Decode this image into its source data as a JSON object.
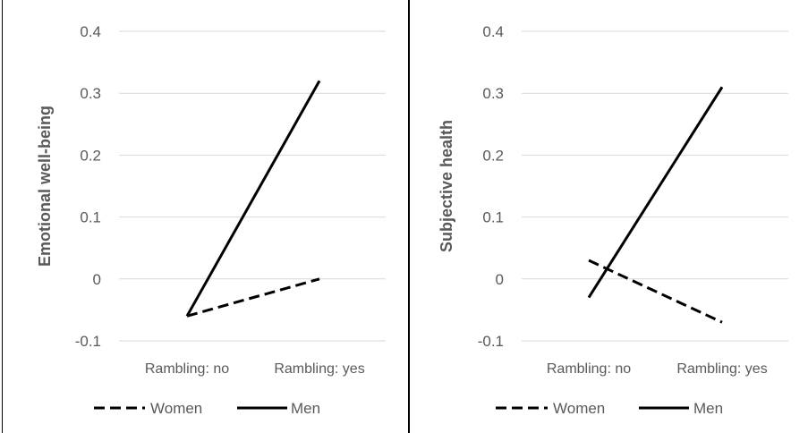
{
  "chart_data": [
    {
      "type": "line",
      "title": "",
      "xlabel": "",
      "ylabel": "Emotional well-being",
      "categories": [
        "Rambling: no",
        "Rambling: yes"
      ],
      "ylim": [
        -0.1,
        0.4
      ],
      "yticks": [
        "-0.1",
        "0",
        "0.1",
        "0.2",
        "0.3",
        "0.4"
      ],
      "grid": true,
      "legend": "bottom",
      "series": [
        {
          "name": "Women",
          "values": [
            -0.06,
            0.0
          ],
          "style": "dashed",
          "color": "#000000"
        },
        {
          "name": "Men",
          "values": [
            -0.06,
            0.32
          ],
          "style": "solid",
          "color": "#000000"
        }
      ]
    },
    {
      "type": "line",
      "title": "",
      "xlabel": "",
      "ylabel": "Subjective health",
      "categories": [
        "Rambling: no",
        "Rambling: yes"
      ],
      "ylim": [
        -0.1,
        0.4
      ],
      "yticks": [
        "-0.1",
        "0",
        "0.1",
        "0.2",
        "0.3",
        "0.4"
      ],
      "grid": true,
      "legend": "bottom",
      "series": [
        {
          "name": "Women",
          "values": [
            0.03,
            -0.07
          ],
          "style": "dashed",
          "color": "#000000"
        },
        {
          "name": "Men",
          "values": [
            -0.03,
            0.31
          ],
          "style": "solid",
          "color": "#000000"
        }
      ]
    }
  ],
  "colors": {
    "gridline": "#d9d9d9",
    "text": "#595959",
    "line": "#000000",
    "divider": "#000000"
  }
}
